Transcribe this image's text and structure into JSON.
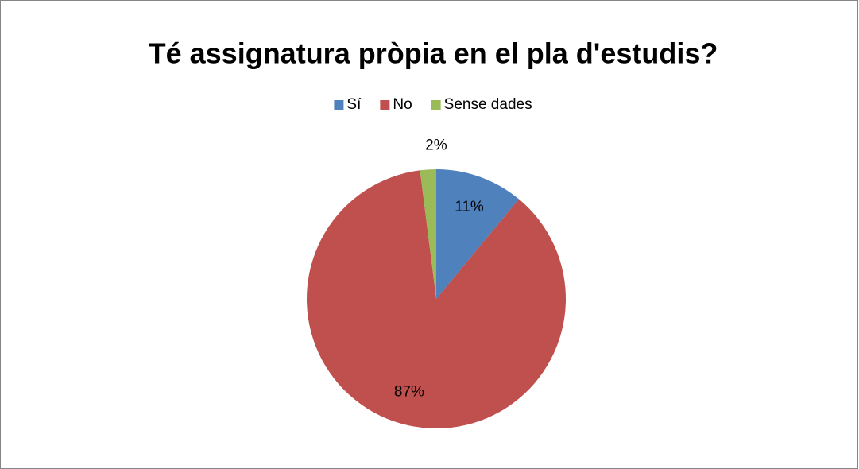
{
  "chart_data": {
    "type": "pie",
    "title": "Té assignatura pròpia en el pla d'estudis?",
    "categories": [
      "Sí",
      "No",
      "Sense dades"
    ],
    "values": [
      11,
      87,
      2
    ],
    "value_labels": [
      "11%",
      "87%",
      "2%"
    ],
    "colors": [
      "#4f81bd",
      "#c0504d",
      "#9bbb59"
    ],
    "legend": "top"
  }
}
